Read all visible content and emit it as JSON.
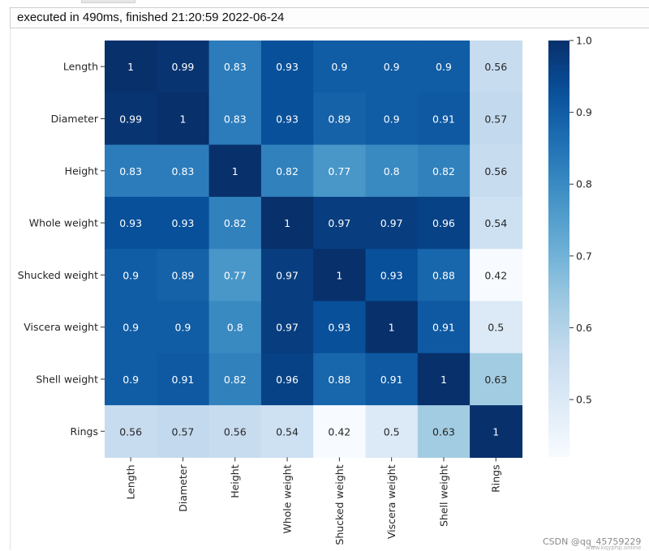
{
  "exec_status": "executed in 490ms, finished 21:20:59 2022-06-24",
  "watermark": "CSDN @qq_45759229",
  "watermark_url": "www.kqyphp.online",
  "chart_data": {
    "type": "heatmap",
    "title": "",
    "xlabel": "",
    "ylabel": "",
    "row_labels": [
      "Length",
      "Diameter",
      "Height",
      "Whole weight",
      "Shucked weight",
      "Viscera weight",
      "Shell weight",
      "Rings"
    ],
    "col_labels": [
      "Length",
      "Diameter",
      "Height",
      "Whole weight",
      "Shucked weight",
      "Viscera weight",
      "Shell weight",
      "Rings"
    ],
    "cell_labels": [
      [
        "1",
        "0.99",
        "0.83",
        "0.93",
        "0.9",
        "0.9",
        "0.9",
        "0.56"
      ],
      [
        "0.99",
        "1",
        "0.83",
        "0.93",
        "0.89",
        "0.9",
        "0.91",
        "0.57"
      ],
      [
        "0.83",
        "0.83",
        "1",
        "0.82",
        "0.77",
        "0.8",
        "0.82",
        "0.56"
      ],
      [
        "0.93",
        "0.93",
        "0.82",
        "1",
        "0.97",
        "0.97",
        "0.96",
        "0.54"
      ],
      [
        "0.9",
        "0.89",
        "0.77",
        "0.97",
        "1",
        "0.93",
        "0.88",
        "0.42"
      ],
      [
        "0.9",
        "0.9",
        "0.8",
        "0.97",
        "0.93",
        "1",
        "0.91",
        "0.5"
      ],
      [
        "0.9",
        "0.91",
        "0.82",
        "0.96",
        "0.88",
        "0.91",
        "1",
        "0.63"
      ],
      [
        "0.56",
        "0.57",
        "0.56",
        "0.54",
        "0.42",
        "0.5",
        "0.63",
        "1"
      ]
    ],
    "colormap": "Blues",
    "colorbar": {
      "min": 0.42,
      "max": 1.0,
      "ticks": [
        0.5,
        0.6,
        0.7,
        0.8,
        0.9,
        1.0
      ],
      "tick_labels": [
        "0.5",
        "0.6",
        "0.7",
        "0.8",
        "0.9",
        "1.0"
      ]
    }
  }
}
